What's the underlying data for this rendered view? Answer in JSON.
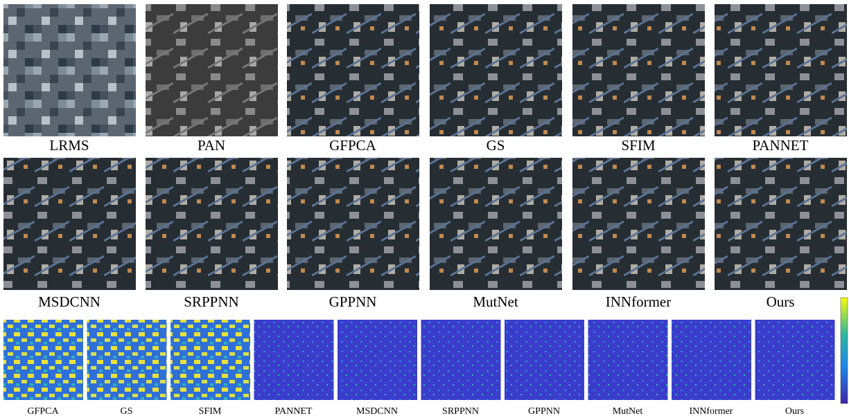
{
  "image_row_1": [
    "LRMS",
    "PAN",
    "GFPCA",
    "GS",
    "SFIM",
    "PANNET"
  ],
  "image_row_2": [
    "MSDCNN",
    "SRPPNN",
    "GPPNN",
    "MutNet",
    "INNformer",
    "Ours"
  ],
  "error_maps": [
    "GFPCA",
    "GS",
    "SFIM",
    "PANNET",
    "MSDCNN",
    "SRPPNN",
    "GPPNN",
    "MutNet",
    "INNformer",
    "Ours"
  ]
}
